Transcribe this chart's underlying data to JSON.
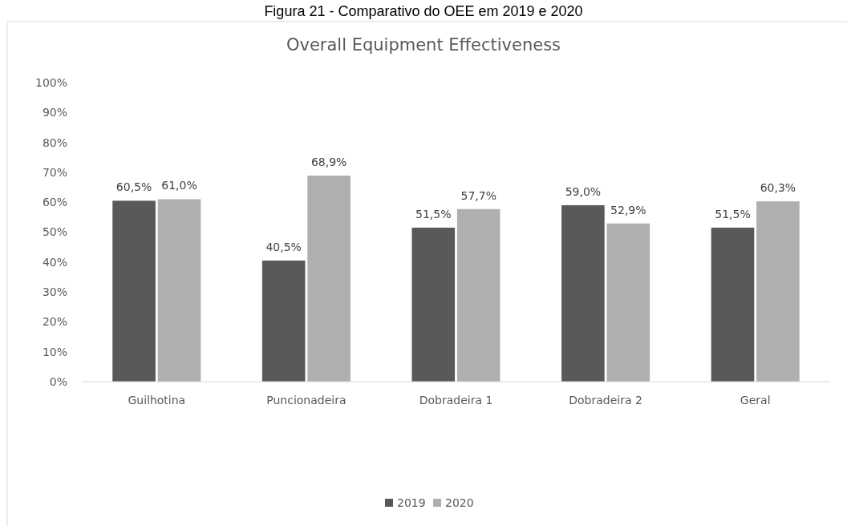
{
  "chart_data": {
    "type": "bar",
    "title": "Figura 21 - Comparativo do OEE em 2019 e 2020",
    "subtitle": "Overall Equipment Effectiveness",
    "categories": [
      "Guilhotina",
      "Puncionadeira",
      "Dobradeira 1",
      "Dobradeira 2",
      "Geral"
    ],
    "series": [
      {
        "name": "2019",
        "color": "#595959",
        "values": [
          60.5,
          40.5,
          51.5,
          59.0,
          51.5
        ],
        "value_labels": [
          "60,5%",
          "40,5%",
          "51,5%",
          "59,0%",
          "51,5%"
        ]
      },
      {
        "name": "2020",
        "color": "#afafaf",
        "values": [
          61.0,
          68.9,
          57.7,
          52.9,
          60.3
        ],
        "value_labels": [
          "61,0%",
          "68,9%",
          "57,7%",
          "52,9%",
          "60,3%"
        ]
      }
    ],
    "ylim": [
      0,
      100
    ],
    "yticks": [
      {
        "value": 0,
        "label": "0%"
      },
      {
        "value": 10,
        "label": "10%"
      },
      {
        "value": 20,
        "label": "20%"
      },
      {
        "value": 30,
        "label": "30%"
      },
      {
        "value": 40,
        "label": "40%"
      },
      {
        "value": 50,
        "label": "50%"
      },
      {
        "value": 60,
        "label": "60%"
      },
      {
        "value": 70,
        "label": "70%"
      },
      {
        "value": 80,
        "label": "80%"
      },
      {
        "value": 90,
        "label": "90%"
      },
      {
        "value": 100,
        "label": "100%"
      }
    ],
    "legend": "bottom"
  }
}
